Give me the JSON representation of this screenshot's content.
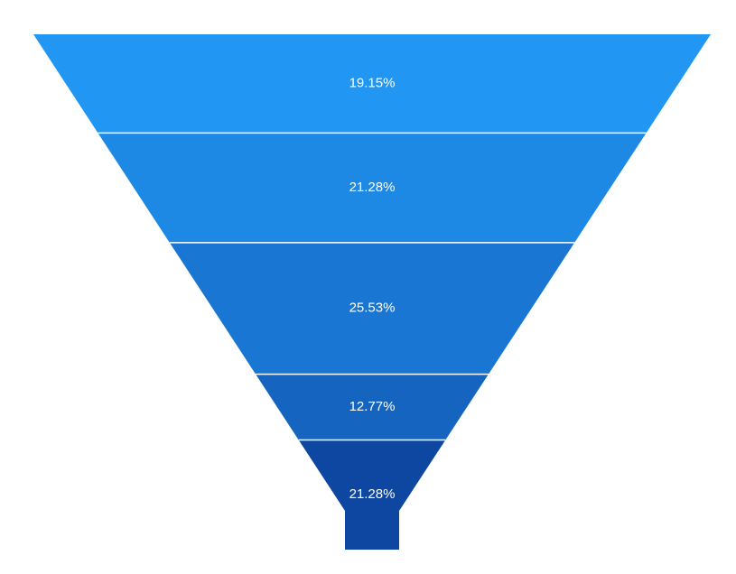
{
  "chart_data": {
    "type": "funnel",
    "title": "",
    "segments": [
      {
        "label": "19.15%",
        "value": 19.15,
        "color": "#2196f3"
      },
      {
        "label": "21.28%",
        "value": 21.28,
        "color": "#1e88e5"
      },
      {
        "label": "25.53%",
        "value": 25.53,
        "color": "#1976d2"
      },
      {
        "label": "12.77%",
        "value": 12.77,
        "color": "#1565c0"
      },
      {
        "label": "21.28%",
        "value": 21.28,
        "color": "#0d47a1"
      }
    ],
    "legend": "none"
  },
  "colors": {
    "background": "#ffffff",
    "separator": "#ffffff",
    "label_text": "#ffffff"
  }
}
